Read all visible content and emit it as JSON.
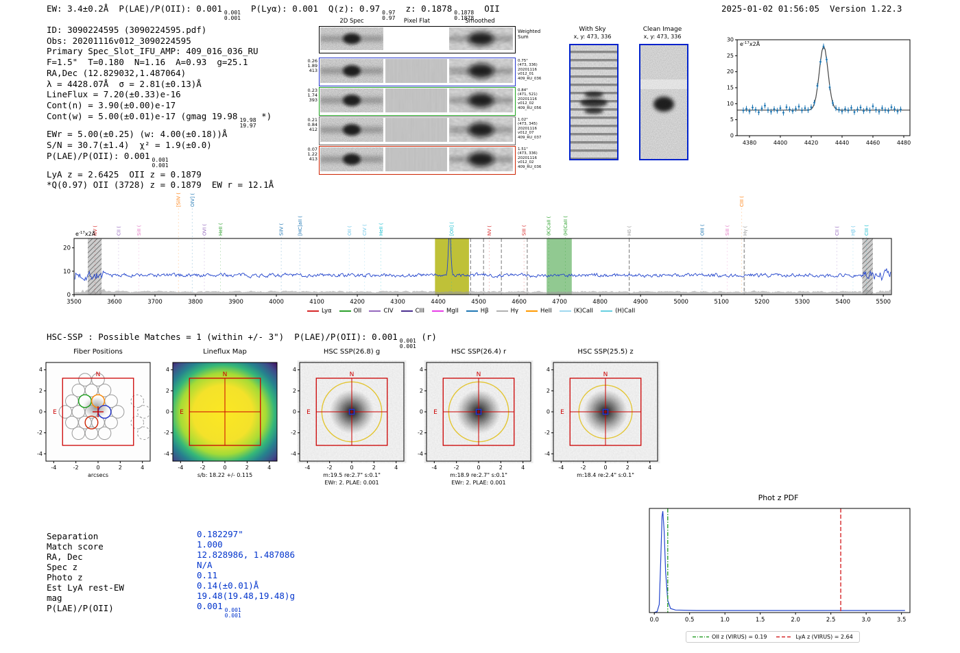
{
  "header": {
    "left_segments": [
      {
        "t": "EW: 3.4±0.2Å  P(LAE)/P(OII): 0.001"
      },
      {
        "hi": "0.001",
        "lo": "0.001"
      },
      {
        "t": "  P(Lyα): 0.001  Q(z): 0.97"
      },
      {
        "hi": "0.97",
        "lo": "0.97"
      },
      {
        "t": "  z: 0.1878"
      },
      {
        "hi": "0.1878",
        "lo": "0.1878"
      },
      {
        "t": "  OII"
      }
    ],
    "timestamp": "2025-01-02 01:56:05  Version 1.22.3"
  },
  "info": {
    "lines": [
      [
        {
          "t": "ID: 3090224595 (3090224595.pdf)"
        }
      ],
      [
        {
          "t": "Obs: 20201116v012_3090224595"
        }
      ],
      [
        {
          "t": "Primary Spec_Slot_IFU_AMP: 409_016_036_RU"
        }
      ],
      [
        {
          "t": "F=1.5\"  T=0.180  N=1.16  A=0.93  g=25.1"
        }
      ],
      [
        {
          "t": "RA,Dec (12.829032,1.487064)"
        }
      ],
      [
        {
          "t": "λ = 4428.07Å  σ = 2.81(±0.13)Å"
        }
      ],
      [
        {
          "t": "LineFlux = 7.20(±0.33)e-16"
        }
      ],
      [
        {
          "t": "Cont(n) = 3.90(±0.00)e-17"
        }
      ],
      [
        {
          "t": "Cont(w) = 5.00(±0.01)e-17 (gmag 19.98"
        },
        {
          "hi": "19.98",
          "lo": "19.97"
        },
        {
          "t": " *)"
        }
      ],
      [
        {
          "t": "EWr = 5.00(±0.25) (w: 4.00(±0.18))Å"
        }
      ],
      [
        {
          "t": "S/N = 30.7(±1.4)  χ² = 1.9(±0.0)"
        }
      ],
      [
        {
          "t": "P(LAE)/P(OII): 0.001"
        },
        {
          "hi": "0.001",
          "lo": "0.001"
        }
      ],
      [
        {
          "t": "LyA z = 2.6425  OII z = 0.1879"
        }
      ],
      [
        {
          "t": "*Q(0.97) OII (3728) z = 0.1879  EW r = 12.1Å"
        }
      ]
    ]
  },
  "spec2d": {
    "column_titles": [
      "2D Spec",
      "Pixel Flat",
      "Smoothed"
    ],
    "weighted_label": [
      "Weighted",
      "Sum"
    ],
    "rows": [
      {
        "left": [
          "0.26",
          "1.89",
          "413"
        ],
        "right": [
          "0.75\"",
          "(473, 336)",
          "20201116",
          "v012_01",
          "409_RU_036"
        ],
        "color": "#2233cc"
      },
      {
        "left": [
          "0.23",
          "1.74",
          "393"
        ],
        "right": [
          "0.84\"",
          "(471, 521)",
          "20201116",
          "v012_02",
          "409_RU_056"
        ],
        "color": "#1a9e1a"
      },
      {
        "left": [
          "0.21",
          "0.84",
          "412"
        ],
        "right": [
          "1.02\"",
          "(473, 345)",
          "20201116",
          "v012_07",
          "409_RU_037"
        ],
        "color": "#666666"
      },
      {
        "left": [
          "0.07",
          "1.22",
          "413"
        ],
        "right": [
          "1.51\"",
          "(473, 336)",
          "20201116",
          "v012_02",
          "409_RU_036"
        ],
        "color": "#cc2200"
      }
    ]
  },
  "sky_panels": {
    "with_sky": {
      "title": "With Sky",
      "coords": "x, y: 473, 336"
    },
    "clean": {
      "title": "Clean Image",
      "coords": "x, y: 473, 336"
    }
  },
  "hsc": {
    "header_segments": [
      {
        "t": "HSC-SSP : Possible Matches = 1 (within +/- 3\")  P(LAE)/P(OII): 0.001"
      },
      {
        "hi": "0.001",
        "lo": "0.001"
      },
      {
        "t": " (r)"
      }
    ]
  },
  "cutouts": {
    "xticks": [
      -4,
      -2,
      0,
      2,
      4
    ],
    "yticks": [
      4,
      2,
      0,
      -2,
      -4
    ],
    "north_label": "N",
    "east_label": "E",
    "fiber_highlight_colors": [
      "#1a9e1a",
      "#ff8800",
      "#2233cc",
      "#cc2200"
    ],
    "panels": [
      {
        "title": "Fiber Positions",
        "type": "fibers",
        "captions": [
          "arcsecs"
        ]
      },
      {
        "title": "Lineflux Map",
        "type": "lineflux",
        "captions": [
          "s/b: 18.22 +/- 0.115"
        ]
      },
      {
        "title": "HSC SSP(26.8) g",
        "type": "image",
        "aperture_radius_arcsec": 2.7,
        "captions": [
          "m:19.5 re:2.7\" s:0.1\"",
          "EWr: 2. PLAE: 0.001"
        ]
      },
      {
        "title": "HSC SSP(26.4) r",
        "type": "image",
        "aperture_radius_arcsec": 2.7,
        "captions": [
          "m:18.9 re:2.7\" s:0.1\"",
          "EWr: 2. PLAE: 0.001"
        ]
      },
      {
        "title": "HSC SSP(25.5) z",
        "type": "image",
        "aperture_radius_arcsec": 2.4,
        "captions": [
          "m:18.4 re:2.4\" s:0.1\""
        ]
      }
    ]
  },
  "match": {
    "value_color": "#0033cc",
    "rows": [
      {
        "label": "Separation",
        "value_segments": [
          {
            "t": "0.182297\""
          }
        ]
      },
      {
        "label": "Match score",
        "value_segments": [
          {
            "t": "1.000"
          }
        ]
      },
      {
        "label": "RA, Dec",
        "value_segments": [
          {
            "t": "12.828986, 1.487086"
          }
        ]
      },
      {
        "label": "Spec z",
        "value_segments": [
          {
            "t": "N/A"
          }
        ]
      },
      {
        "label": "Photo z",
        "value_segments": [
          {
            "t": "0.11"
          }
        ]
      },
      {
        "label": "Est LyA rest-EW",
        "value_segments": [
          {
            "t": "0.14(±0.01)Å"
          }
        ]
      },
      {
        "label": "mag",
        "value_segments": [
          {
            "t": "19.48(19.48,19.48)g"
          }
        ]
      },
      {
        "label": "P(LAE)/P(OII)",
        "value_segments": [
          {
            "t": "0.001"
          },
          {
            "hi": "0.001",
            "lo": "0.001"
          }
        ]
      }
    ]
  },
  "photz": {
    "title": "Phot z PDF"
  },
  "chart_data": [
    {
      "id": "line-fit-zoom",
      "type": "scatter",
      "ylabel": "e-17x2Å",
      "xlim": [
        4372,
        4484
      ],
      "ylim": [
        0,
        30
      ],
      "xticks": [
        4380,
        4400,
        4420,
        4440,
        4460,
        4480
      ],
      "yticks": [
        0,
        5,
        10,
        15,
        20,
        25,
        30
      ],
      "gaussian_fit": {
        "center": 4428.07,
        "sigma": 2.81,
        "continuum": 8.0,
        "peak_height": 28.0
      },
      "point_color": "#1f77b4",
      "fit_color": "#444444",
      "point_error": 0.9,
      "x": [
        4376,
        4378,
        4380,
        4382,
        4384,
        4386,
        4388,
        4390,
        4392,
        4394,
        4396,
        4398,
        4400,
        4402,
        4404,
        4406,
        4408,
        4410,
        4412,
        4414,
        4416,
        4418,
        4420,
        4422,
        4424,
        4426,
        4428,
        4430,
        4432,
        4434,
        4436,
        4438,
        4440,
        4442,
        4444,
        4446,
        4448,
        4450,
        4452,
        4454,
        4456,
        4458,
        4460,
        4462,
        4464,
        4466,
        4468,
        4470,
        4472,
        4474,
        4476,
        4478
      ],
      "y": [
        7.9,
        8.4,
        7.6,
        8.8,
        8.1,
        7.3,
        8.5,
        9.4,
        8.0,
        7.5,
        8.3,
        7.8,
        8.6,
        7.2,
        8.9,
        8.2,
        7.7,
        8.4,
        9.1,
        7.9,
        8.6,
        8.0,
        8.9,
        10.3,
        15.6,
        23.1,
        27.9,
        23.8,
        15.1,
        10.2,
        8.6,
        8.1,
        7.6,
        8.3,
        7.9,
        8.7,
        7.4,
        8.2,
        8.8,
        7.7,
        8.4,
        7.9,
        9.2,
        8.1,
        7.5,
        8.6,
        8.0,
        7.8,
        8.9,
        8.3,
        7.6,
        8.2
      ]
    },
    {
      "id": "full-spectrum",
      "type": "line",
      "ylabel": "e-17x2Å",
      "xlim": [
        3500,
        5520
      ],
      "ylim": [
        0,
        24
      ],
      "xticks": [
        3500,
        3600,
        3700,
        3800,
        3900,
        4000,
        4100,
        4200,
        4300,
        4400,
        4500,
        4600,
        4700,
        4800,
        4900,
        5000,
        5100,
        5200,
        5300,
        5400,
        5500
      ],
      "yticks": [
        0,
        10,
        20
      ],
      "line_color": "#2244cc",
      "continuum_level": 8.3,
      "noise_sigma": 1.1,
      "emission_line": {
        "center": 4428.07,
        "sigma": 2.81,
        "peak_above_continuum": 20
      },
      "detection_band": {
        "x0": 4392,
        "x1": 4476,
        "color": "#b8ba22"
      },
      "caii_band": {
        "x0": 4668,
        "x1": 4730,
        "color": "#7ebf7e"
      },
      "edge_mask_bands": [
        [
          3534,
          3568
        ],
        [
          5448,
          5474
        ]
      ],
      "balmer_dashed_lines": [
        4480,
        4512,
        4556,
        4620,
        4872,
        5156
      ],
      "markers": [
        {
          "label": "NV (",
          "x": 3552,
          "color": "#d62728"
        },
        {
          "label": "CII (",
          "x": 3610,
          "color": "#9467bd"
        },
        {
          "label": "SiII (",
          "x": 3660,
          "color": "#e377c2"
        },
        {
          "label": "[SiIV (",
          "x": 3758,
          "color": "#ff7f0e",
          "hi": true
        },
        {
          "label": "OIV] (",
          "x": 3792,
          "color": "#1f77b4",
          "hi": true
        },
        {
          "label": "OVI (",
          "x": 3822,
          "color": "#9467bd"
        },
        {
          "label": "HeII (",
          "x": 3862,
          "color": "#2ca02c"
        },
        {
          "label": "SiIV (",
          "x": 4012,
          "color": "#1f77b4"
        },
        {
          "label": "[HC]aII (",
          "x": 4058,
          "color": "#1f77b4"
        },
        {
          "label": "OII (",
          "x": 4180,
          "color": "#6ec6e8"
        },
        {
          "label": "CIV (",
          "x": 4218,
          "color": "#6ec6e8"
        },
        {
          "label": "HeII (",
          "x": 4258,
          "color": "#17becf"
        },
        {
          "label": "[OII] (",
          "x": 4433,
          "color": "#17becf"
        },
        {
          "label": "NV (",
          "x": 4526,
          "color": "#d62728"
        },
        {
          "label": "SIII (",
          "x": 4612,
          "color": "#d62728"
        },
        {
          "label": "(K)CaII (",
          "x": 4673,
          "color": "#2ca02c"
        },
        {
          "label": "(H)CaII (",
          "x": 4714,
          "color": "#2ca02c"
        },
        {
          "label": "Hδ (",
          "x": 4872,
          "color": "#999999"
        },
        {
          "label": "OIII (",
          "x": 5052,
          "color": "#1f77b4"
        },
        {
          "label": "SiII (",
          "x": 5114,
          "color": "#e377c2"
        },
        {
          "label": "CIII (",
          "x": 5150,
          "color": "#ff7f0e",
          "hi": true
        },
        {
          "label": "Hγ (",
          "x": 5158,
          "color": "#999999"
        },
        {
          "label": "CII (",
          "x": 5385,
          "color": "#9467bd"
        },
        {
          "label": "Hβ (",
          "x": 5425,
          "color": "#6ec6e8"
        },
        {
          "label": "CIII (",
          "x": 5458,
          "color": "#17becf"
        }
      ],
      "legend": [
        {
          "label": "Lyα",
          "color": "#d62728"
        },
        {
          "label": "OII",
          "color": "#2ca02c"
        },
        {
          "label": "CIV",
          "color": "#9467bd"
        },
        {
          "label": "CIII",
          "color": "#4a2f8f"
        },
        {
          "label": "MgII",
          "color": "#e83ee8"
        },
        {
          "label": "Hβ",
          "color": "#1f77b4"
        },
        {
          "label": "Hγ",
          "color": "#b0b0b0"
        },
        {
          "label": "HeII",
          "color": "#ff9900"
        },
        {
          "label": "(K)CaII",
          "color": "#9fd8ef"
        },
        {
          "label": "(H)CaII",
          "color": "#66cfe0"
        }
      ]
    },
    {
      "id": "photz-pdf",
      "type": "line",
      "title": "Phot z PDF",
      "xlim": [
        -0.07,
        3.62
      ],
      "xticks": [
        0,
        0.5,
        1,
        1.5,
        2,
        2.5,
        3,
        3.5
      ],
      "curve_color": "#2244cc",
      "curve": [
        [
          0,
          0.0
        ],
        [
          0.04,
          0.01
        ],
        [
          0.07,
          0.08
        ],
        [
          0.09,
          0.5
        ],
        [
          0.11,
          0.95
        ],
        [
          0.12,
          1.0
        ],
        [
          0.14,
          0.8
        ],
        [
          0.16,
          0.4
        ],
        [
          0.19,
          0.12
        ],
        [
          0.23,
          0.04
        ],
        [
          0.3,
          0.025
        ],
        [
          0.6,
          0.02
        ],
        [
          1.0,
          0.02
        ],
        [
          1.5,
          0.02
        ],
        [
          2.0,
          0.02
        ],
        [
          2.5,
          0.02
        ],
        [
          3.0,
          0.02
        ],
        [
          3.55,
          0.02
        ]
      ],
      "vlines": [
        {
          "x": 0.19,
          "color": "#2ca02c",
          "dash": "dashdot",
          "label": "OII z (VIRUS) = 0.19"
        },
        {
          "x": 2.64,
          "color": "#d62728",
          "dash": "dashed",
          "label": "LyA z (VIRUS) = 2.64"
        }
      ]
    }
  ]
}
